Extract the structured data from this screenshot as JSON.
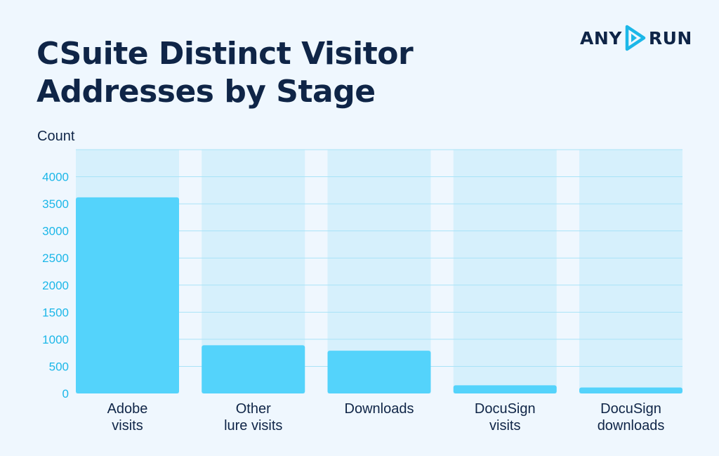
{
  "brand": {
    "logo_left": "ANY",
    "logo_right": "RUN"
  },
  "colors": {
    "background": "#eff7fe",
    "column_band": "#d6f0fc",
    "bar": "#54d3fb",
    "grid": "#a9e3f7",
    "tick_text": "#1cb7e8",
    "title_text": "#0f2547"
  },
  "chart_data": {
    "type": "bar",
    "title": "CSuite Distinct Visitor Addresses by Stage",
    "xlabel": "",
    "ylabel": "Count",
    "ylim": [
      0,
      4500
    ],
    "yticks": [
      0,
      500,
      1000,
      1500,
      2000,
      2500,
      3000,
      3500,
      4000
    ],
    "grid": true,
    "categories": [
      [
        "Adobe",
        "visits"
      ],
      [
        "Other",
        "lure visits"
      ],
      [
        "Downloads"
      ],
      [
        "DocuSign",
        "visits"
      ],
      [
        "DocuSign",
        "downloads"
      ]
    ],
    "values": [
      3620,
      890,
      790,
      150,
      110
    ]
  }
}
